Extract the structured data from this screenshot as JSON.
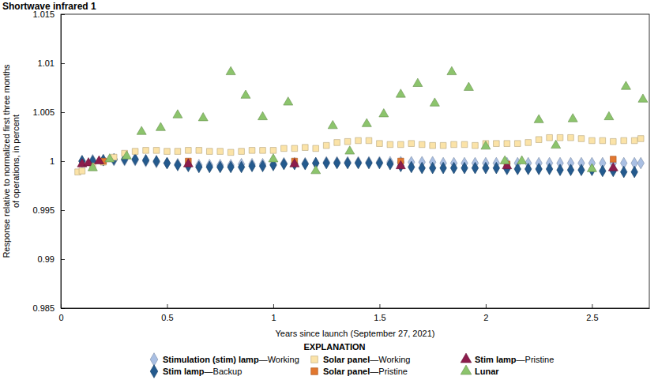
{
  "chart_data": {
    "type": "scatter",
    "title": "Shortwave infrared 1",
    "x_label": "Years since launch (September 27, 2021)",
    "y_label": [
      "Response relative to normalized first three months",
      "of operations, in percent"
    ],
    "legend_title": "EXPLANATION",
    "legend": "bottom",
    "grid": false,
    "xlim": [
      0,
      2.77
    ],
    "ylim": [
      0.985,
      1.015
    ],
    "xticks": [
      0,
      0.5,
      1,
      1.5,
      2,
      2.5
    ],
    "yticks": [
      0.985,
      0.99,
      0.995,
      1,
      1.005,
      1.01,
      1.015
    ],
    "series": [
      {
        "name": "Stimulation (stim) lamp—Working",
        "color": "#a9bfe3",
        "marker": "diamond",
        "x": [
          0.1,
          0.15,
          0.2,
          0.25,
          0.3,
          0.35,
          0.4,
          0.45,
          0.5,
          0.55,
          0.6,
          0.65,
          0.7,
          0.75,
          0.8,
          0.85,
          0.9,
          0.95,
          1.0,
          1.05,
          1.1,
          1.15,
          1.2,
          1.25,
          1.3,
          1.35,
          1.4,
          1.45,
          1.5,
          1.55,
          1.6,
          1.65,
          1.7,
          1.75,
          1.8,
          1.85,
          1.9,
          1.95,
          2.0,
          2.05,
          2.1,
          2.15,
          2.2,
          2.25,
          2.3,
          2.35,
          2.4,
          2.45,
          2.5,
          2.55,
          2.6,
          2.65,
          2.7,
          2.73
        ],
        "values": [
          1.0,
          1.0001,
          1.0001,
          1.0001,
          1.0001,
          1.0001,
          1.0,
          0.9999,
          0.9998,
          0.9997,
          0.9996,
          0.9996,
          0.9996,
          0.9996,
          0.9996,
          0.9997,
          0.9997,
          0.9997,
          0.9997,
          0.9998,
          0.9998,
          0.9998,
          0.9998,
          0.9999,
          0.9999,
          0.9999,
          0.9999,
          0.9999,
          0.9999,
          0.9999,
          0.9999,
          0.9999,
          0.9999,
          0.9999,
          0.9998,
          0.9998,
          0.9998,
          0.9998,
          0.9998,
          0.9998,
          0.9998,
          0.9998,
          0.9998,
          0.9998,
          0.9998,
          0.9998,
          0.9998,
          0.9998,
          0.9998,
          0.9998,
          0.9998,
          0.9998,
          0.9998,
          0.9998
        ]
      },
      {
        "name": "Stim lamp—Backup",
        "color": "#245a8e",
        "marker": "diamond",
        "x": [
          0.1,
          0.15,
          0.2,
          0.25,
          0.3,
          0.35,
          0.4,
          0.45,
          0.5,
          0.55,
          0.6,
          0.65,
          0.7,
          0.75,
          0.8,
          0.85,
          0.9,
          0.95,
          1.0,
          1.05,
          1.1,
          1.15,
          1.2,
          1.25,
          1.3,
          1.35,
          1.4,
          1.45,
          1.5,
          1.55,
          1.6,
          1.65,
          1.7,
          1.75,
          1.8,
          1.85,
          1.9,
          1.95,
          2.0,
          2.05,
          2.1,
          2.15,
          2.2,
          2.25,
          2.3,
          2.35,
          2.4,
          2.45,
          2.5,
          2.55,
          2.6,
          2.65,
          2.7
        ],
        "values": [
          1.0,
          1.0,
          1.0001,
          1.0002,
          1.0002,
          1.0002,
          1.0001,
          1.0,
          0.9998,
          0.9996,
          0.9995,
          0.9994,
          0.9994,
          0.9994,
          0.9994,
          0.9994,
          0.9995,
          0.9995,
          0.9996,
          0.9997,
          0.9997,
          0.9997,
          0.9998,
          0.9998,
          0.9998,
          0.9998,
          0.9998,
          0.9998,
          0.9998,
          0.9997,
          0.9995,
          0.9994,
          0.9993,
          0.9993,
          0.9993,
          0.9993,
          0.9993,
          0.9993,
          0.9993,
          0.9993,
          0.9992,
          0.9992,
          0.9992,
          0.9992,
          0.9992,
          0.9991,
          0.9991,
          0.9991,
          0.9991,
          0.999,
          0.999,
          0.9989,
          0.9989
        ]
      },
      {
        "name": "Solar panel—Working",
        "color": "#fbe3a8",
        "marker": "square",
        "x": [
          0.08,
          0.1,
          0.15,
          0.2,
          0.25,
          0.3,
          0.35,
          0.4,
          0.45,
          0.5,
          0.55,
          0.6,
          0.65,
          0.7,
          0.75,
          0.8,
          0.85,
          0.9,
          0.95,
          1.0,
          1.05,
          1.1,
          1.15,
          1.2,
          1.25,
          1.3,
          1.35,
          1.4,
          1.45,
          1.5,
          1.55,
          1.6,
          1.65,
          1.7,
          1.75,
          1.8,
          1.85,
          1.9,
          1.95,
          2.0,
          2.05,
          2.1,
          2.15,
          2.2,
          2.25,
          2.3,
          2.35,
          2.4,
          2.45,
          2.5,
          2.55,
          2.6,
          2.65,
          2.7,
          2.73
        ],
        "values": [
          0.9989,
          0.999,
          0.9995,
          0.9999,
          1.0004,
          1.0008,
          1.001,
          1.0011,
          1.0011,
          1.001,
          1.001,
          1.0011,
          1.0011,
          1.001,
          1.001,
          1.0009,
          1.001,
          1.0011,
          1.0011,
          1.0011,
          1.0013,
          1.0013,
          1.0014,
          1.0013,
          1.0016,
          1.0019,
          1.002,
          1.0021,
          1.0021,
          1.0018,
          1.0017,
          1.0017,
          1.0018,
          1.0017,
          1.0016,
          1.0016,
          1.0017,
          1.0017,
          1.0016,
          1.0018,
          1.0018,
          1.0018,
          1.0018,
          1.0019,
          1.0022,
          1.0024,
          1.0024,
          1.0024,
          1.0023,
          1.0021,
          1.0021,
          1.002,
          1.0021,
          1.0021,
          1.0023
        ]
      },
      {
        "name": "Solar panel—Pristine",
        "color": "#e2772f",
        "marker": "square",
        "x": [
          0.2,
          0.6,
          1.1,
          1.6,
          2.1,
          2.6
        ],
        "values": [
          1.0,
          1.0,
          1.0,
          1.0,
          0.9997,
          1.0002
        ]
      },
      {
        "name": "Stim lamp—Pristine",
        "color": "#8c1c4c",
        "marker": "triangle",
        "x": [
          0.1,
          0.13,
          0.18,
          0.6,
          1.1,
          1.6,
          2.1,
          2.6
        ],
        "values": [
          0.9997,
          0.9998,
          1.0,
          0.9997,
          0.9997,
          0.9995,
          0.9995,
          0.9993
        ]
      },
      {
        "name": "Lunar",
        "color": "#8cc46c",
        "marker": "triangle",
        "x": [
          0.15,
          0.23,
          0.31,
          0.38,
          0.47,
          0.55,
          0.67,
          0.8,
          0.87,
          0.95,
          1.0,
          1.07,
          1.2,
          1.28,
          1.36,
          1.44,
          1.52,
          1.6,
          1.68,
          1.76,
          1.84,
          1.92,
          2.0,
          2.09,
          2.17,
          2.25,
          2.33,
          2.41,
          2.5,
          2.58,
          2.66,
          2.74
        ],
        "values": [
          0.9993,
          1.0002,
          1.0005,
          1.003,
          1.0034,
          1.0047,
          1.0044,
          1.0091,
          1.0067,
          1.0045,
          1.0002,
          1.006,
          0.999,
          1.0036,
          1.001,
          1.0038,
          1.0048,
          1.0068,
          1.0079,
          1.0059,
          1.0091,
          1.0075,
          1.0015,
          1.0,
          1.0,
          1.0042,
          1.0016,
          1.0043,
          0.9992,
          1.0045,
          1.0076,
          1.0063
        ]
      }
    ]
  }
}
